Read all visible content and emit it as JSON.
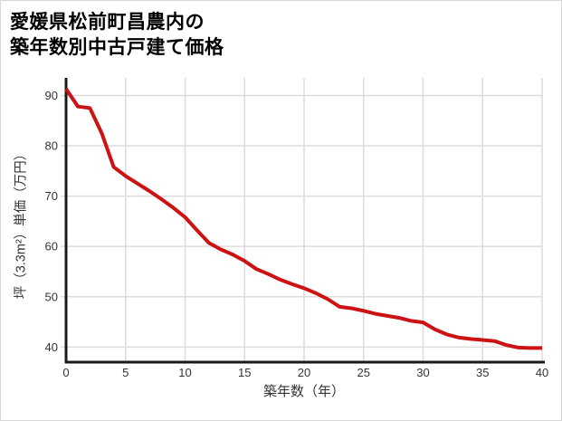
{
  "title": {
    "line1": "愛媛県松前町昌農内の",
    "line2": "築年数別中古戸建て価格"
  },
  "chart_data": {
    "type": "line",
    "title": "愛媛県松前町昌農内の築年数別中古戸建て価格",
    "xlabel": "築年数（年）",
    "ylabel": "坪（3.3m²）単価（万円）",
    "x": [
      0,
      1,
      2,
      3,
      4,
      5,
      6,
      7,
      8,
      9,
      10,
      11,
      12,
      13,
      14,
      15,
      16,
      17,
      18,
      19,
      20,
      21,
      22,
      23,
      24,
      25,
      26,
      27,
      28,
      29,
      30,
      31,
      32,
      33,
      34,
      35,
      36,
      37,
      38,
      39,
      40
    ],
    "values": [
      91.3,
      87.8,
      87.5,
      82.5,
      75.8,
      74.0,
      72.5,
      71.0,
      69.4,
      67.7,
      65.8,
      63.2,
      60.7,
      59.4,
      58.4,
      57.1,
      55.5,
      54.5,
      53.4,
      52.5,
      51.7,
      50.7,
      49.5,
      48.0,
      47.7,
      47.2,
      46.6,
      46.2,
      45.8,
      45.2,
      44.9,
      43.5,
      42.5,
      41.9,
      41.6,
      41.4,
      41.2,
      40.4,
      39.9,
      39.8,
      39.8
    ],
    "xticks": [
      0,
      5,
      10,
      15,
      20,
      25,
      30,
      35,
      40
    ],
    "yticks": [
      40,
      50,
      60,
      70,
      80,
      90
    ],
    "xlim": [
      0,
      40
    ],
    "ylim": [
      37,
      93.5
    ],
    "grid": true,
    "legend_position": "none",
    "line_color": "#cc1212",
    "grid_color": "#dcdcdc",
    "axis_color": "#1a1a1a",
    "tick_text_color": "#333333"
  }
}
